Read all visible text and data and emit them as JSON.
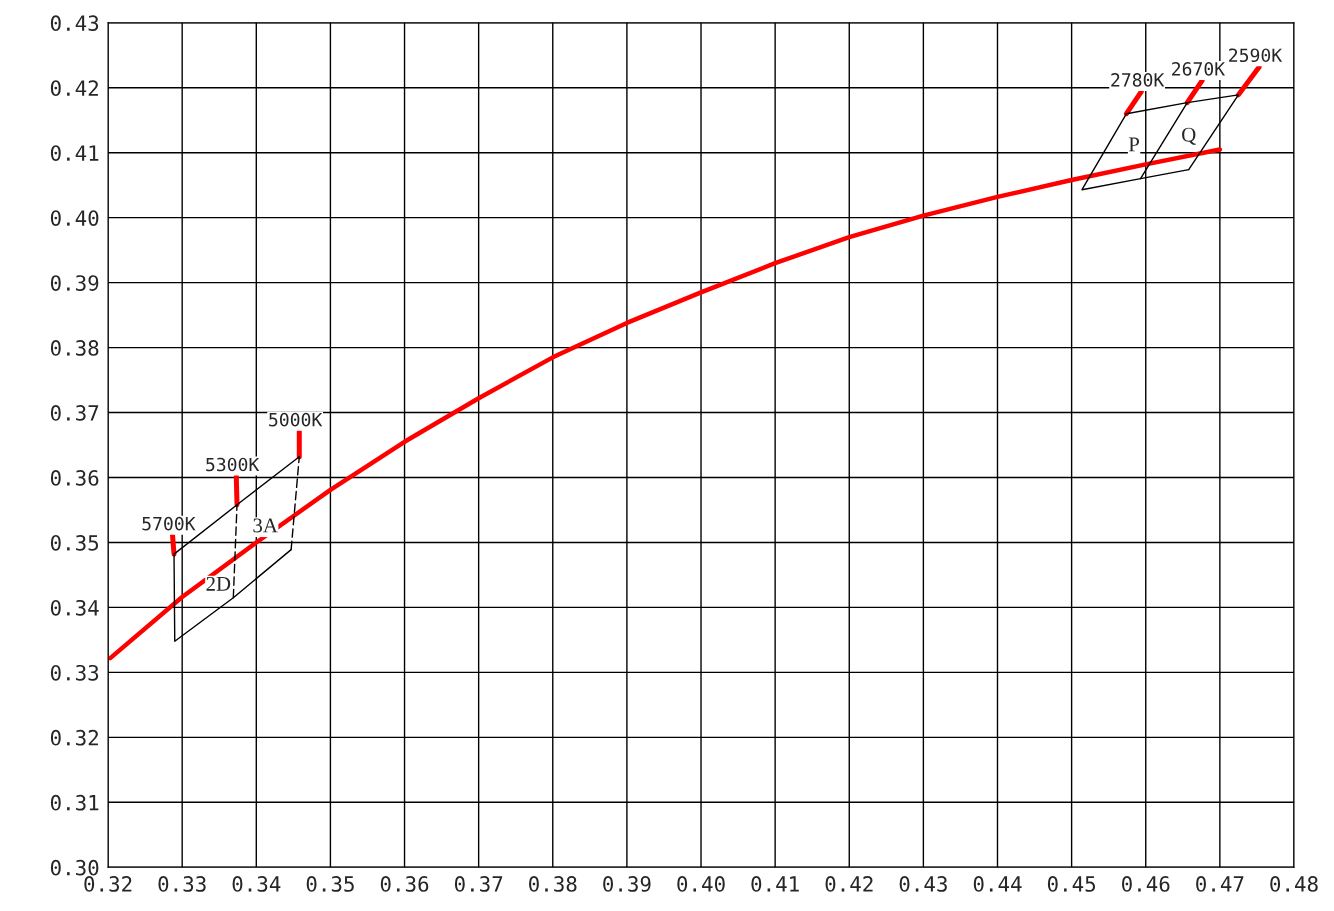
{
  "chart_data": {
    "type": "line",
    "grid": true,
    "legend": false,
    "xlim": [
      0.32,
      0.48
    ],
    "ylim": [
      0.3,
      0.43
    ],
    "xticks": [
      {
        "value": 0.32,
        "label": "0.32"
      },
      {
        "value": 0.33,
        "label": "0.33"
      },
      {
        "value": 0.34,
        "label": "0.34"
      },
      {
        "value": 0.35,
        "label": "0.35"
      },
      {
        "value": 0.36,
        "label": "0.36"
      },
      {
        "value": 0.37,
        "label": "0.37"
      },
      {
        "value": 0.38,
        "label": "0.38"
      },
      {
        "value": 0.39,
        "label": "0.39"
      },
      {
        "value": 0.4,
        "label": "0.40"
      },
      {
        "value": 0.41,
        "label": "0.41"
      },
      {
        "value": 0.42,
        "label": "0.42"
      },
      {
        "value": 0.43,
        "label": "0.43"
      },
      {
        "value": 0.44,
        "label": "0.44"
      },
      {
        "value": 0.45,
        "label": "0.45"
      },
      {
        "value": 0.46,
        "label": "0.46"
      },
      {
        "value": 0.47,
        "label": "0.47"
      },
      {
        "value": 0.48,
        "label": "0.48"
      }
    ],
    "yticks": [
      {
        "value": 0.3,
        "label": "0.30"
      },
      {
        "value": 0.31,
        "label": "0.31"
      },
      {
        "value": 0.32,
        "label": "0.32"
      },
      {
        "value": 0.33,
        "label": "0.33"
      },
      {
        "value": 0.34,
        "label": "0.34"
      },
      {
        "value": 0.35,
        "label": "0.35"
      },
      {
        "value": 0.36,
        "label": "0.36"
      },
      {
        "value": 0.37,
        "label": "0.37"
      },
      {
        "value": 0.38,
        "label": "0.38"
      },
      {
        "value": 0.39,
        "label": "0.39"
      },
      {
        "value": 0.4,
        "label": "0.40"
      },
      {
        "value": 0.41,
        "label": "0.41"
      },
      {
        "value": 0.42,
        "label": "0.42"
      },
      {
        "value": 0.43,
        "label": "0.43"
      }
    ],
    "series": [
      {
        "color": "#ff0000",
        "x": [
          0.3203,
          0.33,
          0.34,
          0.35,
          0.36,
          0.37,
          0.38,
          0.39,
          0.4,
          0.41,
          0.42,
          0.43,
          0.44,
          0.45,
          0.46,
          0.47
        ],
        "values": [
          0.3322,
          0.3416,
          0.35,
          0.3581,
          0.3655,
          0.3722,
          0.3785,
          0.3838,
          0.3885,
          0.393,
          0.397,
          0.4003,
          0.4032,
          0.4058,
          0.4082,
          0.4105
        ]
      },
      {
        "color": "#ff0000",
        "x": [
          0.3289,
          0.3287,
          null,
          0.3374,
          0.3373,
          null,
          0.3458,
          0.3458,
          null,
          0.4574,
          0.4594,
          null,
          0.4656,
          0.4676,
          null,
          0.4725,
          0.4753
        ],
        "values": [
          0.3482,
          0.3511,
          null,
          0.3558,
          0.3602,
          null,
          0.3632,
          0.3671,
          null,
          0.416,
          0.4194,
          null,
          0.4177,
          0.4211,
          null,
          0.4189,
          0.4232
        ]
      },
      {
        "name": "2D",
        "color": "#000000",
        "line_style": "solid",
        "x": [
          0.3458,
          0.3374,
          0.3289,
          0.329,
          0.3369,
          0.3447
        ],
        "values": [
          0.3632,
          0.3558,
          0.3482,
          0.3348,
          0.3415,
          0.3489
        ]
      },
      {
        "name": "3A",
        "color": "#000000",
        "line_style": "dashed",
        "x": [
          0.3369,
          0.3374,
          null,
          0.3447,
          0.3458
        ],
        "values": [
          0.3415,
          0.3558,
          null,
          0.3489,
          0.3632
        ]
      },
      {
        "name": "P",
        "color": "#000000",
        "line_style": "solid",
        "x": [
          0.4658,
          0.4593,
          0.4514,
          0.4574,
          0.4656
        ],
        "values": [
          0.4074,
          0.406,
          0.4043,
          0.416,
          0.4177
        ]
      },
      {
        "name": "Q",
        "color": "#000000",
        "line_style": "solid",
        "x": [
          0.4593,
          0.4656,
          0.4725,
          0.4658
        ],
        "values": [
          0.406,
          0.4177,
          0.4189,
          0.4074
        ]
      }
    ],
    "annotations": [
      {
        "text": "5700K",
        "x": 0.3287,
        "y": 0.3511
      },
      {
        "text": "5300K",
        "x": 0.3373,
        "y": 0.3602
      },
      {
        "text": "5000K",
        "x": 0.3458,
        "y": 0.3671
      },
      {
        "text": "2780K",
        "x": 0.4594,
        "y": 0.4194
      },
      {
        "text": "2670K",
        "x": 0.4676,
        "y": 0.4211
      },
      {
        "text": "2590K",
        "x": 0.4753,
        "y": 0.4232
      }
    ]
  }
}
